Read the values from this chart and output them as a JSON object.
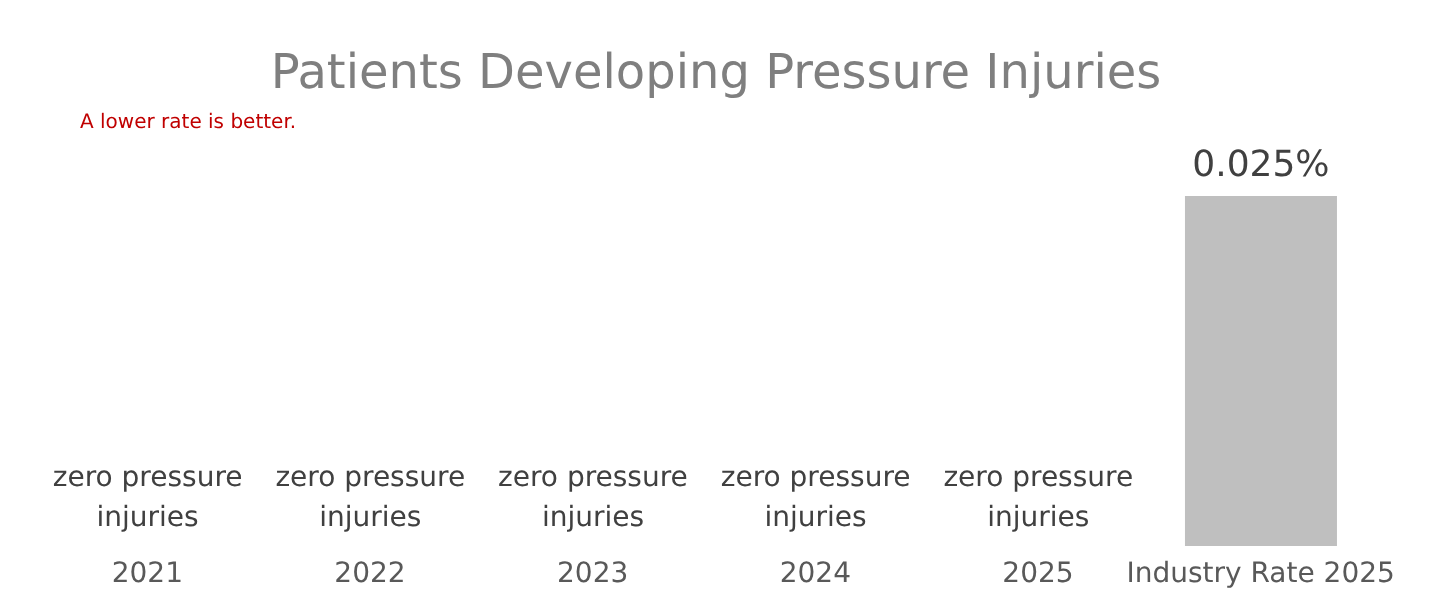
{
  "chart_data": {
    "type": "bar",
    "title": "Patients Developing Pressure Injuries",
    "annotations": [
      "A lower rate is better."
    ],
    "categories": [
      "2021",
      "2022",
      "2023",
      "2024",
      "2025",
      "Industry Rate 2025"
    ],
    "values": [
      0,
      0,
      0,
      0,
      0,
      0.025
    ],
    "value_labels": [
      "zero pressure injuries",
      "zero pressure injuries",
      "zero pressure injuries",
      "zero pressure injuries",
      "zero pressure injuries",
      "0.025%"
    ],
    "color": "#bfbfbf"
  }
}
